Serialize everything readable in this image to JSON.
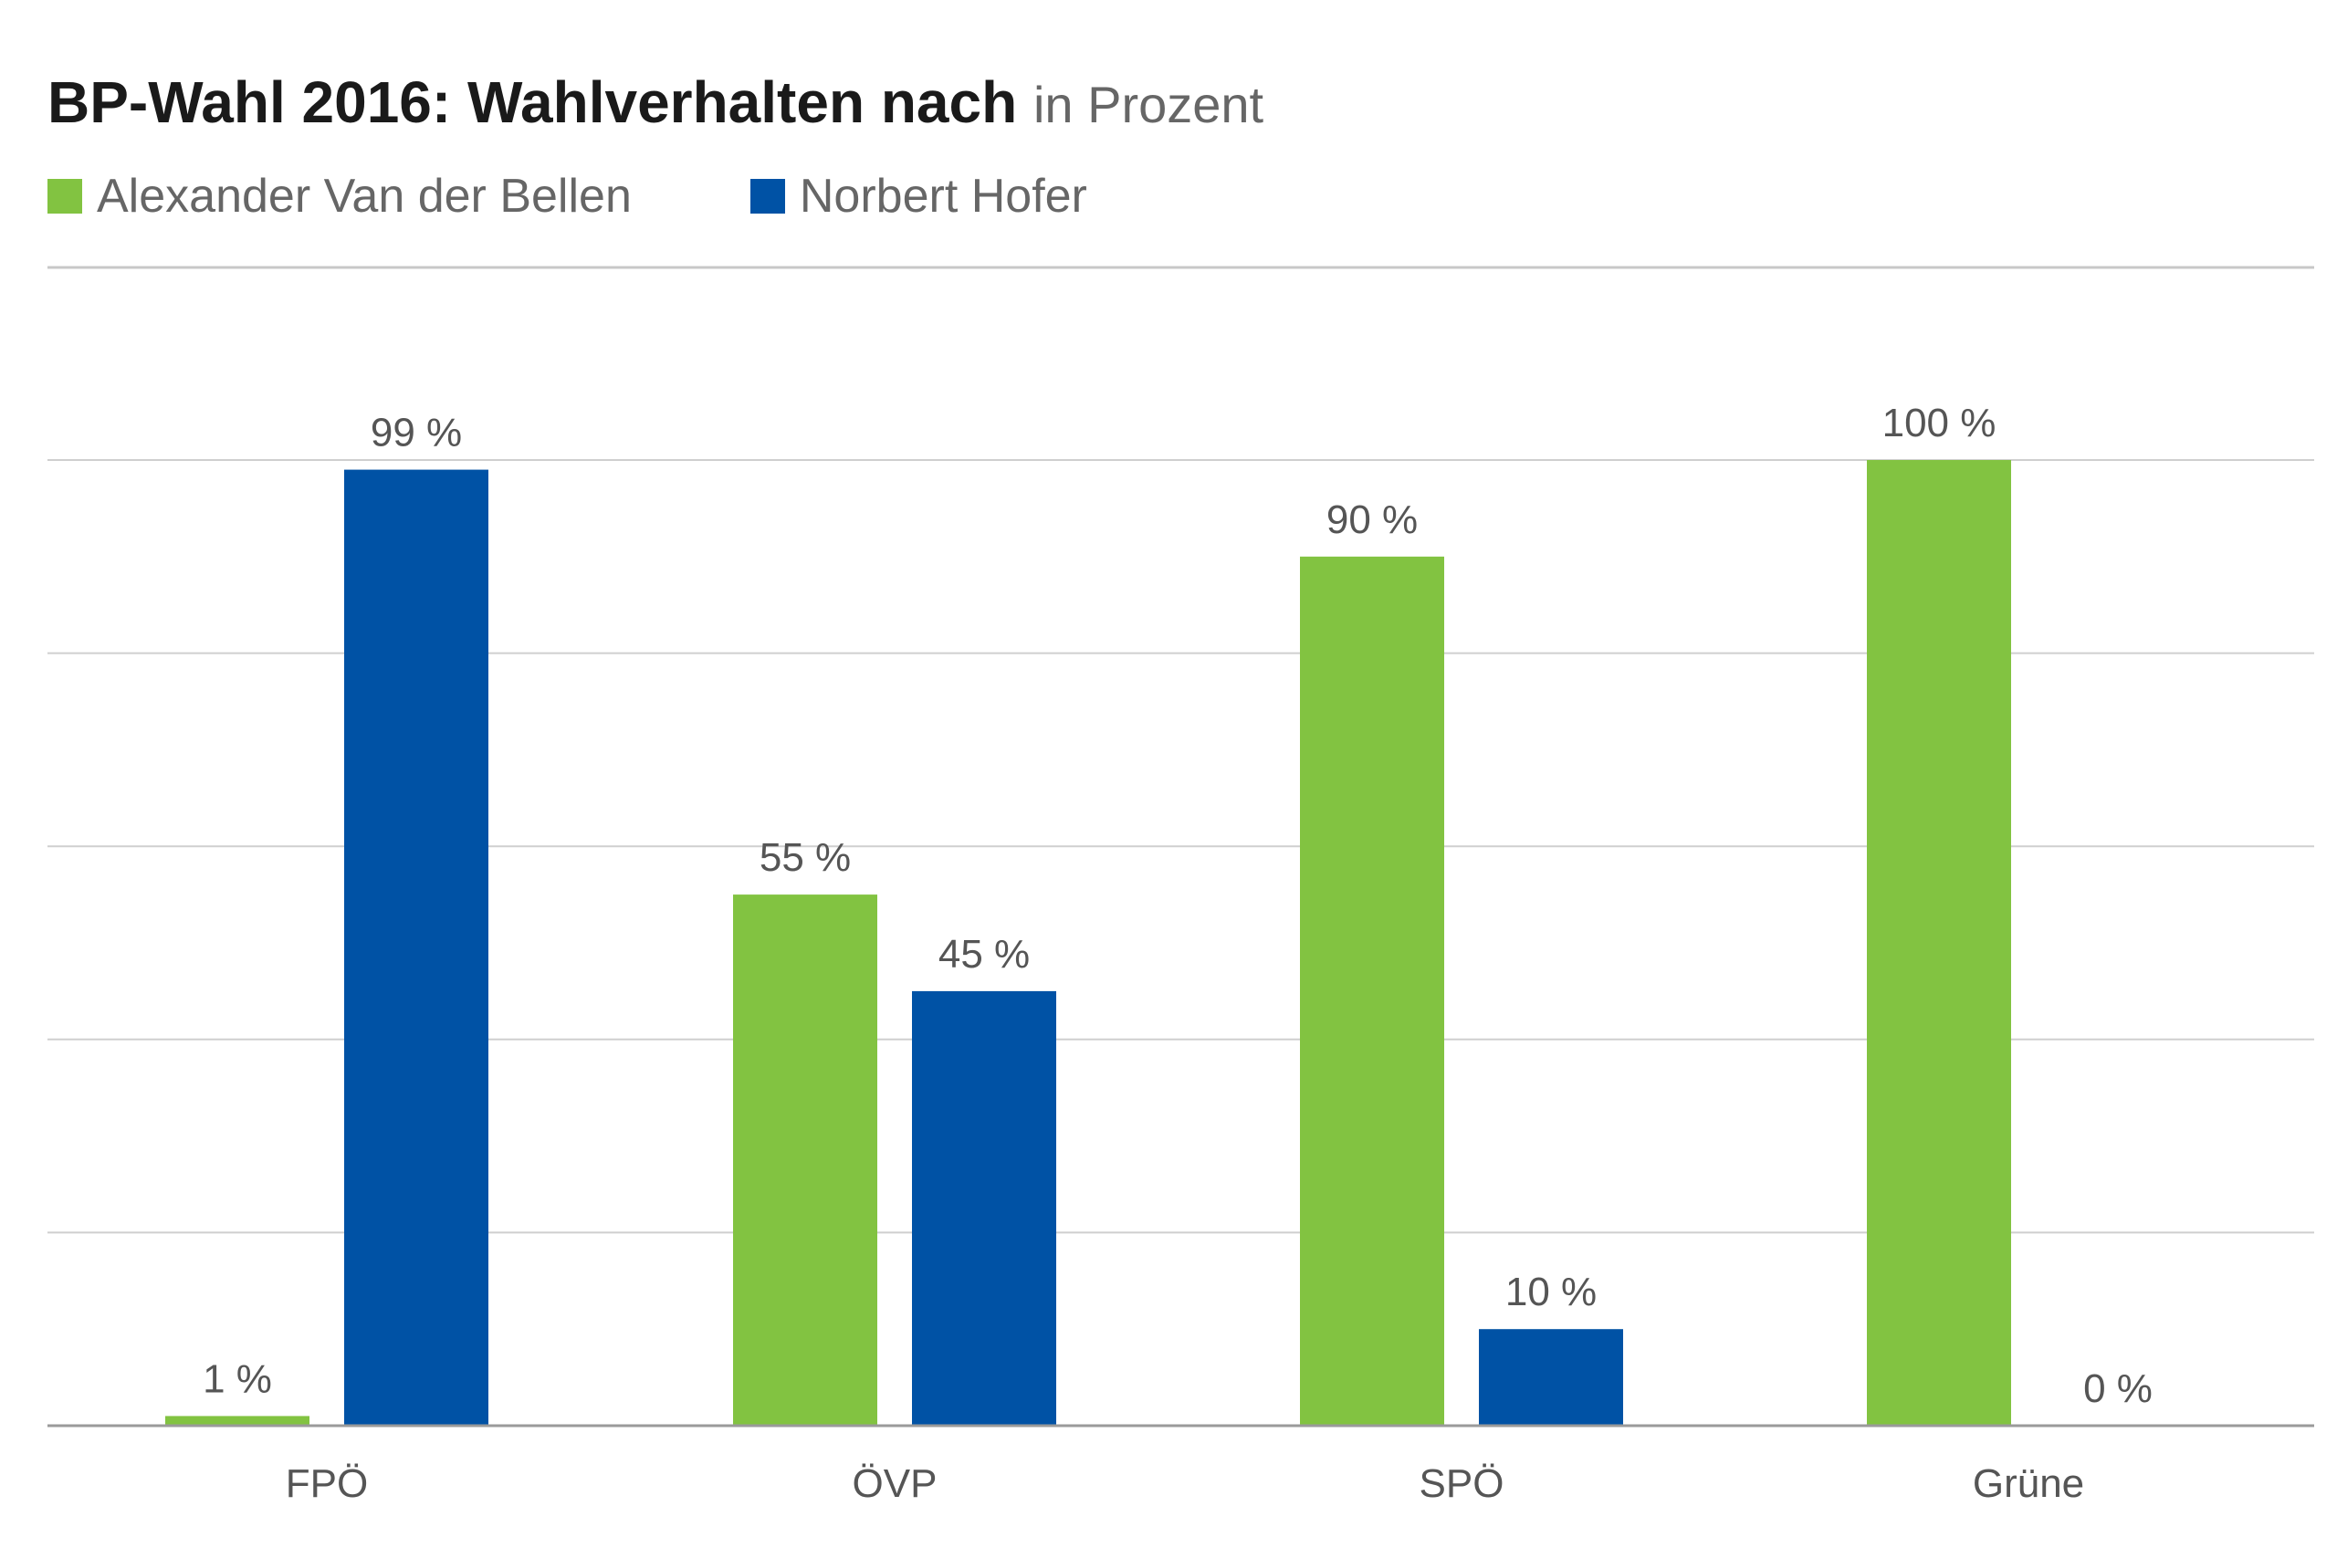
{
  "chart_data": {
    "type": "bar",
    "title": "BP-Wahl 2016: Wahlverhalten nach",
    "subtitle": "in Prozent",
    "xlabel": "",
    "ylabel": "",
    "ylim": [
      0,
      100
    ],
    "grid": true,
    "legend_position": "top-left",
    "categories": [
      "FPÖ",
      "ÖVP",
      "SPÖ",
      "Grüne"
    ],
    "series": [
      {
        "name": "Alexander Van der Bellen",
        "color": "#82c341",
        "values": [
          1,
          55,
          90,
          100
        ],
        "labels": [
          "1 %",
          "55 %",
          "90 %",
          "100 %"
        ]
      },
      {
        "name": "Norbert Hofer",
        "color": "#0052a5",
        "values": [
          99,
          45,
          10,
          0
        ],
        "labels": [
          "99 %",
          "45 %",
          "10 %",
          "0 %"
        ]
      }
    ]
  }
}
